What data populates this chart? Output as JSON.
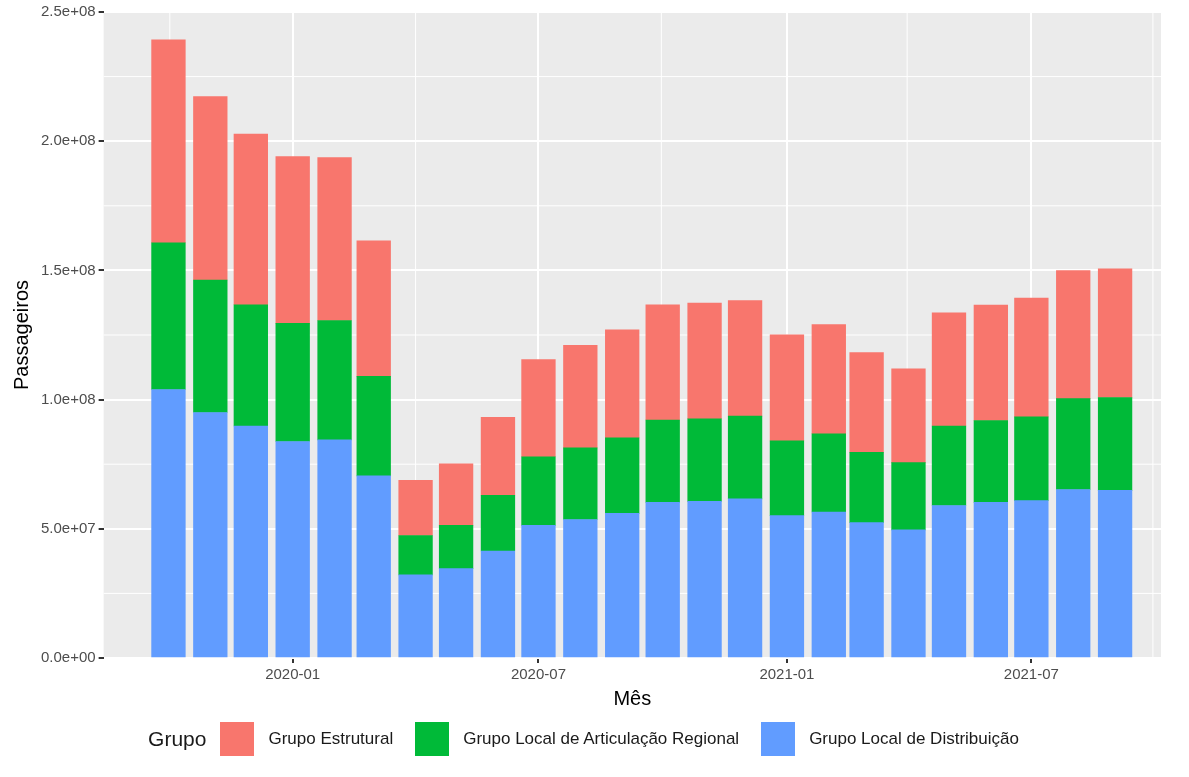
{
  "chart_data": {
    "type": "bar",
    "stacked": true,
    "xlabel": "Mês",
    "ylabel": "Passageiros",
    "legend_title": "Grupo",
    "legend": "bottom",
    "grid": true,
    "x": [
      "2019-10",
      "2019-11",
      "2019-12",
      "2020-01",
      "2020-02",
      "2020-03",
      "2020-04",
      "2020-05",
      "2020-06",
      "2020-07",
      "2020-08",
      "2020-09",
      "2020-10",
      "2020-11",
      "2020-12",
      "2021-01",
      "2021-02",
      "2021-03",
      "2021-04",
      "2021-05",
      "2021-06",
      "2021-07",
      "2021-08",
      "2021-09"
    ],
    "xlim": [
      "2019-08-14",
      "2021-10-05"
    ],
    "xticks": [
      "2020-01",
      "2020-07",
      "2021-01",
      "2021-07"
    ],
    "ylim": [
      0,
      250000000
    ],
    "yticks": [
      {
        "value": 0,
        "label": "0.0e+00"
      },
      {
        "value": 50000000,
        "label": "5.0e+07"
      },
      {
        "value": 100000000,
        "label": "1.0e+08"
      },
      {
        "value": 150000000,
        "label": "1.5e+08"
      },
      {
        "value": 200000000,
        "label": "2.0e+08"
      },
      {
        "value": 250000000,
        "label": "2.5e+08"
      }
    ],
    "series": [
      {
        "name": "Grupo Local de Distribuição",
        "color": "#619cff",
        "values": [
          103900000,
          95000000,
          89800000,
          83800000,
          84400000,
          70500000,
          32200000,
          34600000,
          41400000,
          51300000,
          53600000,
          56000000,
          60200000,
          60600000,
          61600000,
          55100000,
          56500000,
          52400000,
          49600000,
          59000000,
          60200000,
          60900000,
          65200000,
          64900000
        ]
      },
      {
        "name": "Grupo Local de Articulação Regional",
        "color": "#00ba38",
        "values": [
          56800000,
          51300000,
          46900000,
          45700000,
          46200000,
          38500000,
          15200000,
          16700000,
          21600000,
          26600000,
          27700000,
          29200000,
          31900000,
          32000000,
          32000000,
          28900000,
          30300000,
          27200000,
          26000000,
          30800000,
          31700000,
          32400000,
          35200000,
          35900000
        ]
      },
      {
        "name": "Grupo Estrutural",
        "color": "#f8766d",
        "values": [
          78500000,
          71000000,
          66100000,
          64500000,
          63100000,
          52400000,
          21400000,
          23800000,
          30100000,
          37600000,
          39700000,
          41800000,
          44600000,
          44800000,
          44700000,
          41100000,
          42200000,
          38600000,
          36300000,
          43800000,
          44700000,
          46000000,
          49500000,
          49800000
        ]
      }
    ]
  }
}
